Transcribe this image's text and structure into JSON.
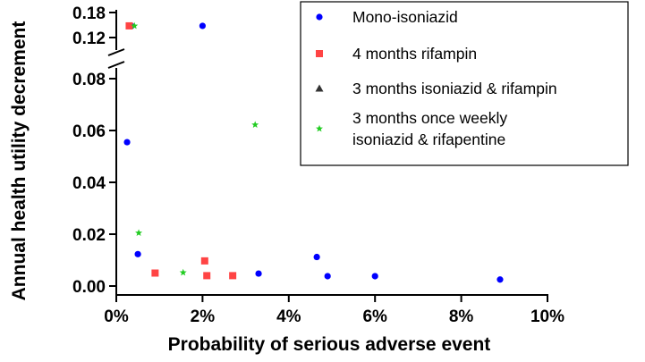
{
  "chart_data": {
    "type": "scatter",
    "title": "",
    "xlabel": "Probability of serious adverse event",
    "ylabel": "Annual health utility decrement",
    "x_ticks": [
      "0%",
      "2%",
      "4%",
      "6%",
      "8%",
      "10%"
    ],
    "x_tick_values": [
      0,
      0.02,
      0.04,
      0.06,
      0.08,
      0.1
    ],
    "xlim": [
      0,
      0.1
    ],
    "y_axis_broken": true,
    "y_lower_range": [
      0,
      0.08
    ],
    "y_lower_ticks": [
      "0.00",
      "0.02",
      "0.04",
      "0.06",
      "0.08"
    ],
    "y_lower_tick_values": [
      0,
      0.02,
      0.04,
      0.06,
      0.08
    ],
    "y_upper_range": [
      0.12,
      0.18
    ],
    "y_upper_ticks": [
      "0.12",
      "0.18"
    ],
    "y_upper_tick_values": [
      0.12,
      0.18
    ],
    "legend_position": "top-right",
    "grid": false,
    "series": [
      {
        "name": "Mono-isoniazid",
        "marker": "circle",
        "color": "#0000ff",
        "points": [
          {
            "x": 0.0035,
            "y": 0.1475
          },
          {
            "x": 0.02,
            "y": 0.148
          },
          {
            "x": 0.0025,
            "y": 0.0555
          },
          {
            "x": 0.005,
            "y": 0.0123
          },
          {
            "x": 0.033,
            "y": 0.0048
          },
          {
            "x": 0.0465,
            "y": 0.0112
          },
          {
            "x": 0.049,
            "y": 0.0038
          },
          {
            "x": 0.06,
            "y": 0.0038
          },
          {
            "x": 0.089,
            "y": 0.0025
          }
        ]
      },
      {
        "name": "4 months rifampin",
        "marker": "square",
        "color": "#ff4444",
        "points": [
          {
            "x": 0.003,
            "y": 0.148
          },
          {
            "x": 0.009,
            "y": 0.005
          },
          {
            "x": 0.0205,
            "y": 0.0097
          },
          {
            "x": 0.021,
            "y": 0.004
          },
          {
            "x": 0.027,
            "y": 0.004
          }
        ]
      },
      {
        "name": "3 months isoniazid & rifampin",
        "marker": "triangle",
        "color": "#333333",
        "points": []
      },
      {
        "name": "3 months once weekly isoniazid & rifapentine",
        "legend_lines": [
          "3 months once weekly",
          "isoniazid & rifapentine"
        ],
        "marker": "star",
        "color": "#22cc22",
        "points": [
          {
            "x": 0.0042,
            "y": 0.148
          },
          {
            "x": 0.0322,
            "y": 0.0622
          },
          {
            "x": 0.0052,
            "y": 0.0205
          },
          {
            "x": 0.0155,
            "y": 0.0052
          }
        ]
      }
    ]
  }
}
